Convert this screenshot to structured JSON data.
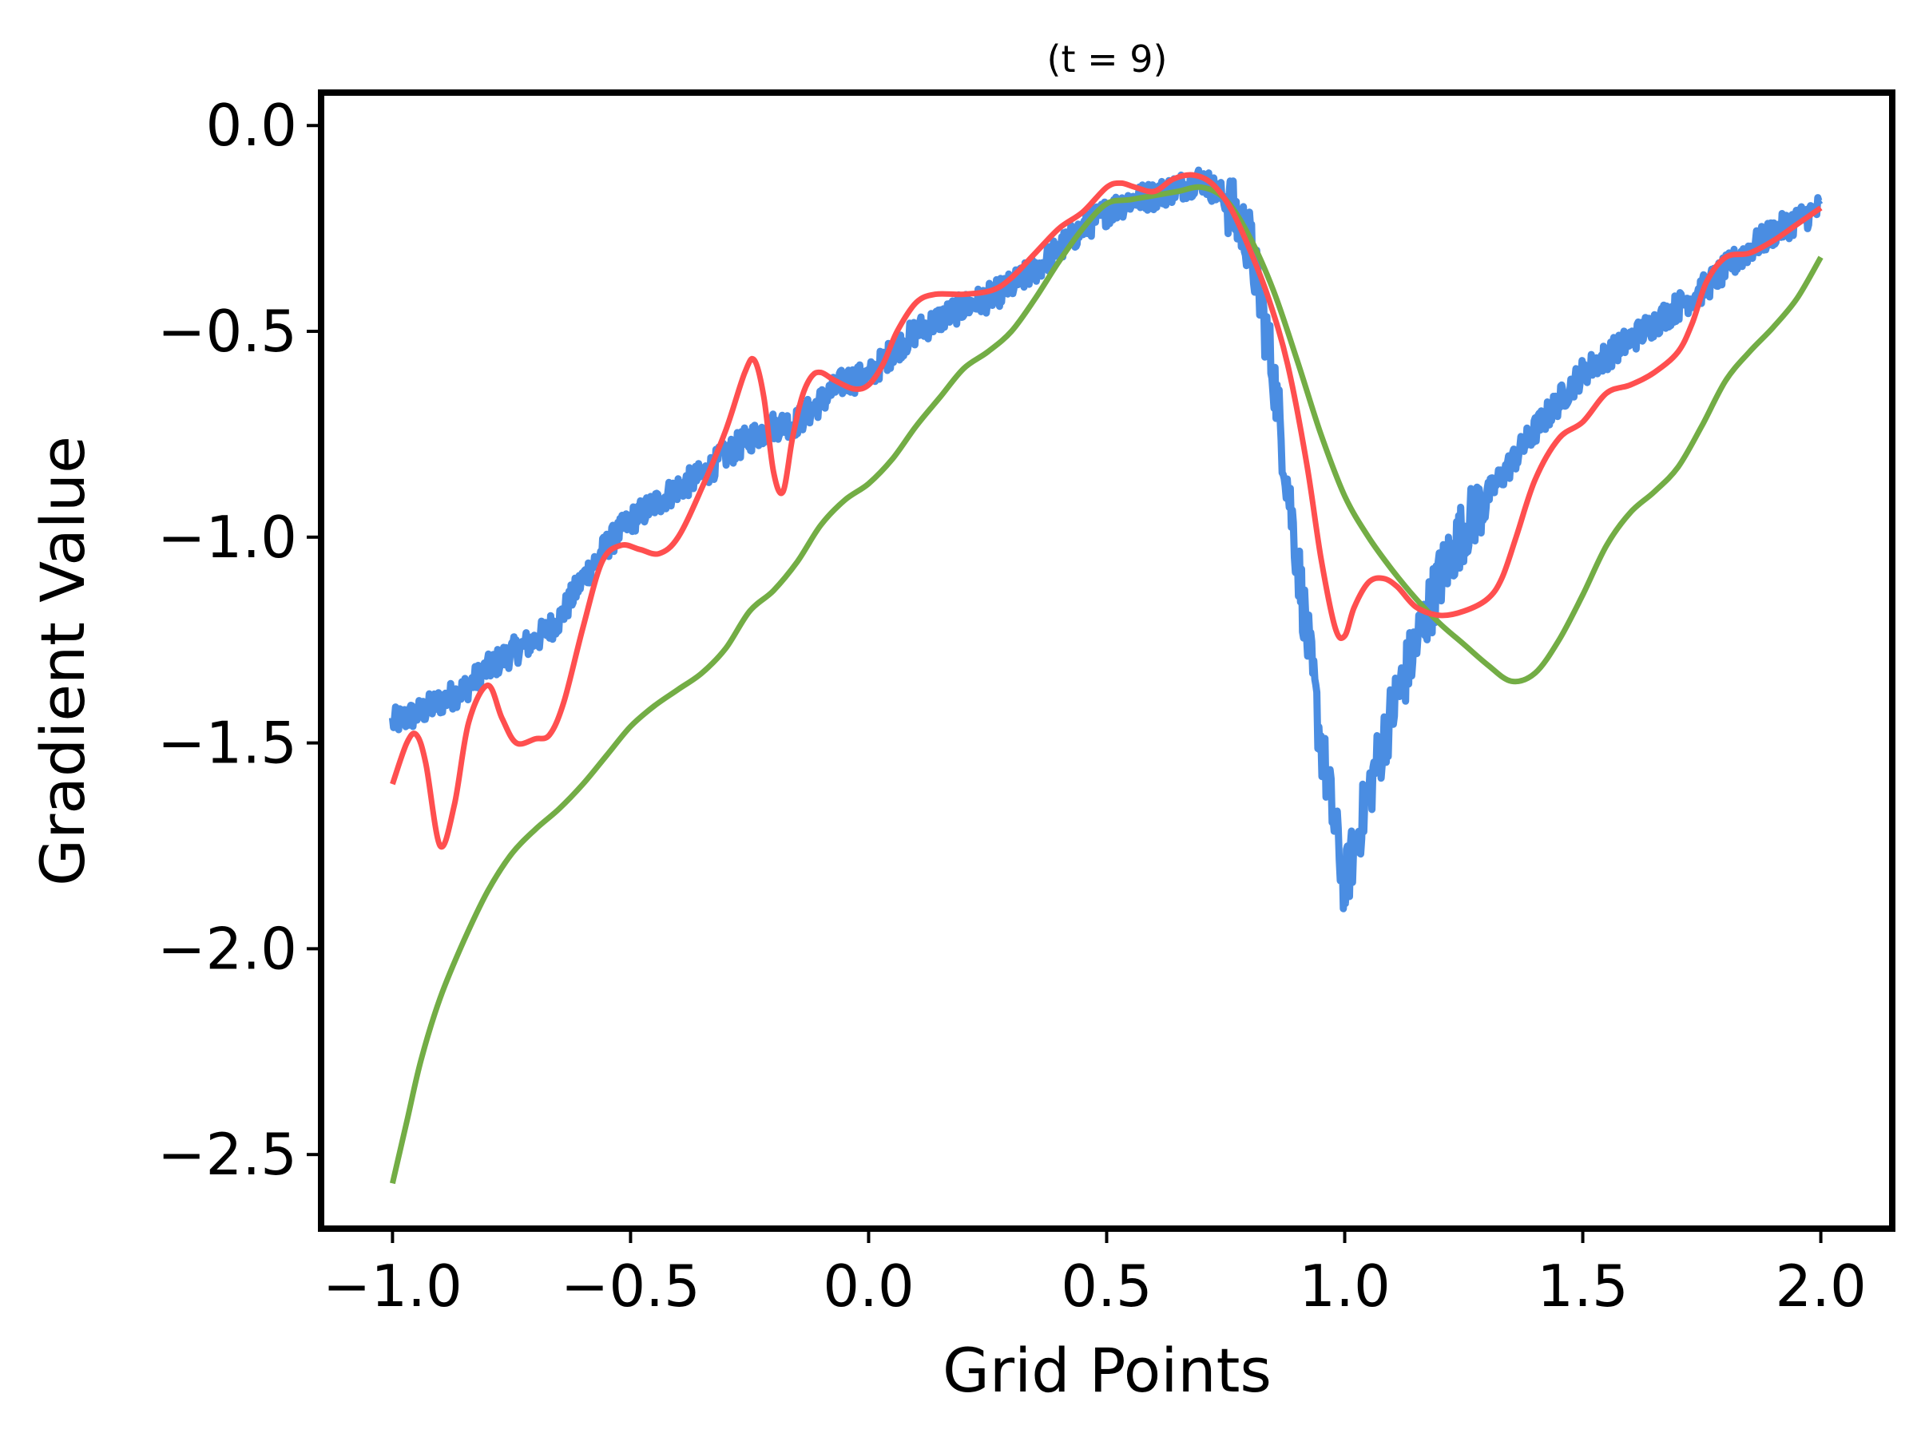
{
  "chart_data": {
    "type": "line",
    "title": "(t = 9)",
    "xlabel": "Grid Points",
    "ylabel": "Gradient Value",
    "xlim": [
      -1.15,
      2.15
    ],
    "ylim": [
      -2.68,
      0.08
    ],
    "grid": false,
    "xticks": [
      -1.0,
      -0.5,
      0.0,
      0.5,
      1.0,
      1.5,
      2.0
    ],
    "xtick_labels": [
      "−1.0",
      "−0.5",
      "0.0",
      "0.5",
      "1.0",
      "1.5",
      "2.0"
    ],
    "yticks": [
      0.0,
      -0.5,
      -1.0,
      -1.5,
      -2.0,
      -2.5
    ],
    "ytick_labels": [
      "0.0",
      "−0.5",
      "−1.0",
      "−1.5",
      "−2.0",
      "−2.5"
    ],
    "series": [
      {
        "color": "#4a8de2",
        "style": "noisy",
        "x": [
          -1.0,
          -0.95,
          -0.9,
          -0.85,
          -0.8,
          -0.75,
          -0.7,
          -0.65,
          -0.6,
          -0.55,
          -0.5,
          -0.45,
          -0.4,
          -0.35,
          -0.3,
          -0.25,
          -0.2,
          -0.15,
          -0.1,
          -0.05,
          0.0,
          0.05,
          0.1,
          0.15,
          0.2,
          0.25,
          0.3,
          0.35,
          0.4,
          0.45,
          0.5,
          0.55,
          0.6,
          0.65,
          0.7,
          0.75,
          0.8,
          0.85,
          0.9,
          0.95,
          1.0,
          1.05,
          1.1,
          1.15,
          1.2,
          1.25,
          1.3,
          1.35,
          1.4,
          1.45,
          1.5,
          1.55,
          1.6,
          1.65,
          1.7,
          1.75,
          1.8,
          1.85,
          1.9,
          1.95,
          2.0
        ],
        "values": [
          -1.45,
          -1.43,
          -1.4,
          -1.37,
          -1.32,
          -1.28,
          -1.25,
          -1.2,
          -1.1,
          -1.02,
          -0.96,
          -0.92,
          -0.88,
          -0.85,
          -0.8,
          -0.76,
          -0.73,
          -0.72,
          -0.67,
          -0.62,
          -0.61,
          -0.55,
          -0.5,
          -0.47,
          -0.44,
          -0.42,
          -0.39,
          -0.35,
          -0.3,
          -0.25,
          -0.21,
          -0.18,
          -0.17,
          -0.15,
          -0.13,
          -0.18,
          -0.28,
          -0.6,
          -1.05,
          -1.5,
          -1.85,
          -1.62,
          -1.42,
          -1.26,
          -1.1,
          -0.98,
          -0.9,
          -0.82,
          -0.74,
          -0.67,
          -0.6,
          -0.56,
          -0.52,
          -0.48,
          -0.44,
          -0.4,
          -0.35,
          -0.3,
          -0.26,
          -0.23,
          -0.2
        ]
      },
      {
        "color": "#ff4f4f",
        "style": "smooth",
        "x": [
          -1.0,
          -0.97,
          -0.95,
          -0.93,
          -0.9,
          -0.87,
          -0.84,
          -0.8,
          -0.77,
          -0.74,
          -0.7,
          -0.67,
          -0.64,
          -0.6,
          -0.56,
          -0.52,
          -0.48,
          -0.44,
          -0.4,
          -0.35,
          -0.3,
          -0.26,
          -0.24,
          -0.22,
          -0.2,
          -0.18,
          -0.16,
          -0.14,
          -0.12,
          -0.1,
          -0.07,
          -0.03,
          0.0,
          0.03,
          0.06,
          0.1,
          0.14,
          0.2,
          0.26,
          0.3,
          0.35,
          0.4,
          0.45,
          0.5,
          0.53,
          0.56,
          0.6,
          0.64,
          0.68,
          0.72,
          0.76,
          0.8,
          0.84,
          0.88,
          0.92,
          0.95,
          0.98,
          1.0,
          1.02,
          1.05,
          1.08,
          1.11,
          1.15,
          1.2,
          1.25,
          1.3,
          1.33,
          1.36,
          1.4,
          1.45,
          1.5,
          1.55,
          1.6,
          1.65,
          1.7,
          1.73,
          1.76,
          1.8,
          1.85,
          1.9,
          1.95,
          2.0
        ],
        "values": [
          -1.6,
          -1.5,
          -1.48,
          -1.55,
          -1.75,
          -1.65,
          -1.45,
          -1.36,
          -1.44,
          -1.5,
          -1.49,
          -1.48,
          -1.4,
          -1.22,
          -1.06,
          -1.02,
          -1.03,
          -1.04,
          -1.0,
          -0.88,
          -0.74,
          -0.6,
          -0.57,
          -0.66,
          -0.84,
          -0.89,
          -0.76,
          -0.66,
          -0.61,
          -0.6,
          -0.62,
          -0.64,
          -0.63,
          -0.58,
          -0.5,
          -0.43,
          -0.41,
          -0.41,
          -0.4,
          -0.37,
          -0.31,
          -0.25,
          -0.21,
          -0.15,
          -0.14,
          -0.15,
          -0.16,
          -0.13,
          -0.12,
          -0.14,
          -0.2,
          -0.3,
          -0.42,
          -0.58,
          -0.82,
          -1.05,
          -1.22,
          -1.24,
          -1.17,
          -1.11,
          -1.1,
          -1.12,
          -1.17,
          -1.19,
          -1.18,
          -1.15,
          -1.1,
          -1.0,
          -0.86,
          -0.76,
          -0.72,
          -0.65,
          -0.63,
          -0.6,
          -0.55,
          -0.48,
          -0.38,
          -0.32,
          -0.31,
          -0.28,
          -0.24,
          -0.2
        ]
      },
      {
        "color": "#73ad45",
        "style": "smooth",
        "x": [
          -1.0,
          -0.97,
          -0.94,
          -0.9,
          -0.85,
          -0.8,
          -0.75,
          -0.7,
          -0.65,
          -0.6,
          -0.55,
          -0.5,
          -0.45,
          -0.4,
          -0.35,
          -0.3,
          -0.25,
          -0.2,
          -0.15,
          -0.1,
          -0.05,
          0.0,
          0.05,
          0.1,
          0.15,
          0.2,
          0.25,
          0.3,
          0.35,
          0.4,
          0.45,
          0.5,
          0.55,
          0.6,
          0.65,
          0.7,
          0.75,
          0.8,
          0.85,
          0.9,
          0.95,
          1.0,
          1.05,
          1.1,
          1.15,
          1.2,
          1.25,
          1.3,
          1.35,
          1.4,
          1.45,
          1.5,
          1.55,
          1.6,
          1.65,
          1.7,
          1.75,
          1.8,
          1.85,
          1.9,
          1.95,
          2.0
        ],
        "values": [
          -2.57,
          -2.42,
          -2.27,
          -2.12,
          -1.98,
          -1.86,
          -1.77,
          -1.71,
          -1.66,
          -1.6,
          -1.53,
          -1.46,
          -1.41,
          -1.37,
          -1.33,
          -1.27,
          -1.18,
          -1.13,
          -1.06,
          -0.97,
          -0.91,
          -0.87,
          -0.81,
          -0.73,
          -0.66,
          -0.59,
          -0.55,
          -0.5,
          -0.42,
          -0.33,
          -0.25,
          -0.19,
          -0.18,
          -0.17,
          -0.16,
          -0.15,
          -0.18,
          -0.27,
          -0.4,
          -0.57,
          -0.75,
          -0.9,
          -1.0,
          -1.08,
          -1.15,
          -1.21,
          -1.26,
          -1.31,
          -1.35,
          -1.33,
          -1.25,
          -1.14,
          -1.02,
          -0.94,
          -0.89,
          -0.83,
          -0.73,
          -0.62,
          -0.55,
          -0.49,
          -0.42,
          -0.32
        ]
      }
    ]
  }
}
